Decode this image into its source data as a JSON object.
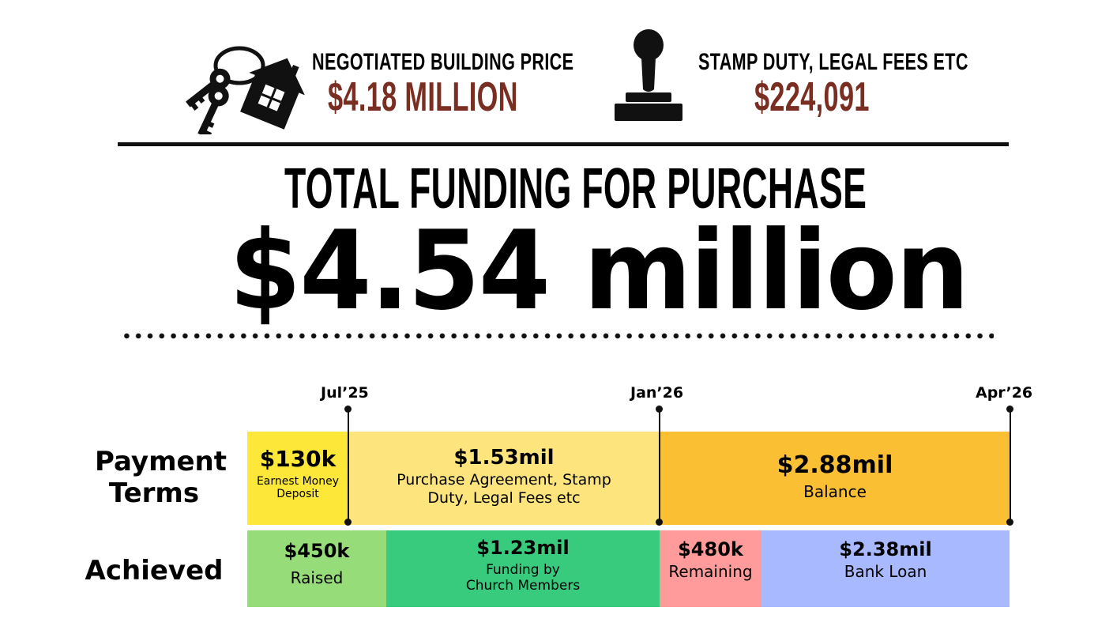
{
  "building_price": {
    "label": "NEGOTIATED BUILDING PRICE",
    "value": "$4.18 MILLION"
  },
  "stamp_duty": {
    "label": "STAMP DUTY, LEGAL FEES ETC",
    "value": "$224,091"
  },
  "total": {
    "label": "TOTAL FUNDING FOR PURCHASE",
    "value": "$4.54 million"
  },
  "timeline": {
    "dates": [
      "Jul’25",
      "Jan’26",
      "Apr’26"
    ]
  },
  "payment_terms": {
    "label": "Payment Terms",
    "segments": [
      {
        "amount": "$130k",
        "desc": "Earnest Money Deposit",
        "color": "#fde83a"
      },
      {
        "amount": "$1.53mil",
        "desc": "Purchase Agreement, Stamp Duty, Legal Fees etc",
        "color": "#fde47c"
      },
      {
        "amount": "$2.88mil",
        "desc": "Balance",
        "color": "#fbbf33"
      }
    ]
  },
  "achieved": {
    "label": "Achieved",
    "segments": [
      {
        "amount": "$450k",
        "desc": "Raised",
        "color": "#96dc78"
      },
      {
        "amount": "$1.23mil",
        "desc": "Funding by Church Members",
        "color": "#38cb7e"
      },
      {
        "amount": "$480k",
        "desc": "Remaining",
        "color": "#ff9b9b"
      },
      {
        "amount": "$2.38mil",
        "desc": "Bank Loan",
        "color": "#a9b9ff"
      }
    ]
  },
  "colors": {
    "value_accent": "#7a2e22"
  }
}
